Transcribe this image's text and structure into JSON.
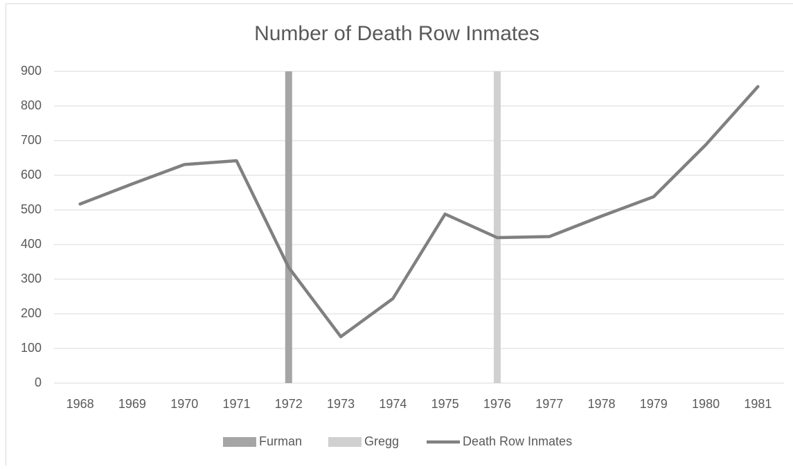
{
  "chart_data": {
    "type": "combo",
    "title": "Number of Death Row Inmates",
    "categories": [
      "1968",
      "1969",
      "1970",
      "1971",
      "1972",
      "1973",
      "1974",
      "1975",
      "1976",
      "1977",
      "1978",
      "1979",
      "1980",
      "1981"
    ],
    "series": [
      {
        "name": "Furman",
        "type": "bar",
        "color": "#a5a5a5",
        "values": [
          null,
          null,
          null,
          null,
          900,
          null,
          null,
          null,
          null,
          null,
          null,
          null,
          null,
          null
        ]
      },
      {
        "name": "Gregg",
        "type": "bar",
        "color": "#d0d0d0",
        "values": [
          null,
          null,
          null,
          null,
          null,
          null,
          null,
          null,
          900,
          null,
          null,
          null,
          null,
          null
        ]
      },
      {
        "name": "Death Row Inmates",
        "type": "line",
        "color": "#808080",
        "values": [
          517,
          575,
          631,
          642,
          334,
          134,
          244,
          488,
          420,
          423,
          482,
          538,
          688,
          856
        ]
      }
    ],
    "ylim": [
      0,
      900
    ],
    "yticks": [
      0,
      100,
      200,
      300,
      400,
      500,
      600,
      700,
      800,
      900
    ],
    "grid": true,
    "legend": "bottom"
  }
}
